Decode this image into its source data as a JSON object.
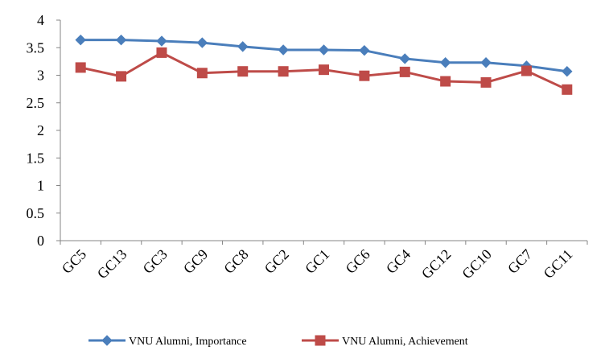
{
  "chart_data": {
    "type": "line",
    "title": "",
    "xlabel": "",
    "ylabel": "",
    "categories": [
      "GC5",
      "GC13",
      "GC3",
      "GC9",
      "GC8",
      "GC2",
      "GC1",
      "GC6",
      "GC4",
      "GC12",
      "GC10",
      "GC7",
      "GC11"
    ],
    "ylim": [
      0,
      4
    ],
    "yticks": [
      "0",
      "0.5",
      "1",
      "1.5",
      "2",
      "2.5",
      "3",
      "3.5",
      "4"
    ],
    "grid": false,
    "legend_position": "bottom",
    "series": [
      {
        "name": "VNU Alumni, Importance",
        "color": "#4a7ebb",
        "marker": "diamond",
        "values": [
          3.64,
          3.64,
          3.62,
          3.59,
          3.52,
          3.46,
          3.46,
          3.45,
          3.3,
          3.23,
          3.23,
          3.17,
          3.07
        ]
      },
      {
        "name": "VNU Alumni, Achievement",
        "color": "#be4b48",
        "marker": "square",
        "values": [
          3.14,
          2.98,
          3.41,
          3.04,
          3.07,
          3.07,
          3.1,
          2.99,
          3.06,
          2.89,
          2.87,
          3.08,
          2.74
        ]
      }
    ]
  }
}
